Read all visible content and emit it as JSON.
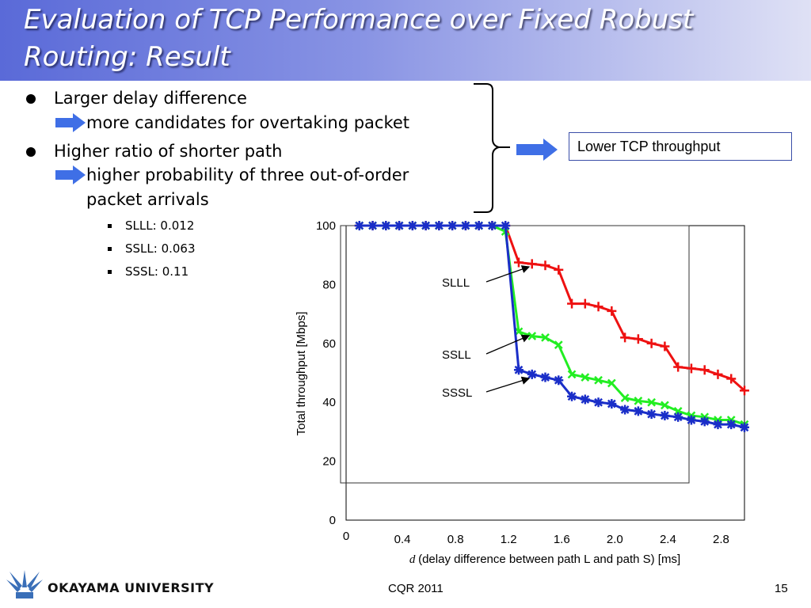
{
  "slide": {
    "title_line1": "Evaluation of TCP Performance over Fixed Robust",
    "title_line2": "Routing: Result"
  },
  "bullets": [
    {
      "text": "Larger delay difference",
      "consequence": "more candidates for overtaking packet"
    },
    {
      "text": "Higher ratio of shorter path",
      "consequence_line1": "higher probability of three out-of-order",
      "consequence_line2": "packet arrivals"
    }
  ],
  "sub_bullets": [
    "SLLL: 0.012",
    "SSLL: 0.063",
    "SSSL: 0.11"
  ],
  "conclusion": "Lower TCP throughput",
  "colors": {
    "title_gradient_start": "#5a6ad8",
    "arrow": "#3f6fe6",
    "slll": "#ee1111",
    "ssll": "#22ee22",
    "sssl": "#1a2ec8"
  },
  "icons": [
    "right-arrow-icon",
    "curly-brace-icon",
    "university-logo-icon"
  ],
  "chart_data": {
    "type": "line",
    "xlabel_italic": "d",
    "xlabel": "(delay difference between path L and path S) [ms]",
    "ylabel": "Total throughput [Mbps]",
    "ylim": [
      0,
      100
    ],
    "xlim": [
      0,
      3.0
    ],
    "xticks": [
      "0",
      "0.4",
      "0.8",
      "1.2",
      "1.6",
      "2.0",
      "2.4",
      "2.8"
    ],
    "yticks": [
      "0",
      "20",
      "40",
      "60",
      "80",
      "100"
    ],
    "series": [
      {
        "name": "SLLL",
        "marker": "+",
        "x": [
          0.1,
          0.2,
          0.3,
          0.4,
          0.5,
          0.6,
          0.7,
          0.8,
          0.9,
          1.0,
          1.1,
          1.2,
          1.3,
          1.4,
          1.5,
          1.6,
          1.7,
          1.8,
          1.9,
          2.0,
          2.1,
          2.2,
          2.3,
          2.4,
          2.5,
          2.6,
          2.7,
          2.8,
          2.9,
          3.0
        ],
        "y": [
          100,
          100,
          100,
          100,
          100,
          100,
          100,
          100,
          100,
          100,
          100,
          100,
          87.5,
          87,
          86.5,
          85,
          73.5,
          73.5,
          72.5,
          71,
          62,
          61.5,
          60,
          59,
          52,
          51.5,
          51,
          49.5,
          48,
          44
        ]
      },
      {
        "name": "SSLL",
        "marker": "x",
        "x": [
          0.1,
          0.2,
          0.3,
          0.4,
          0.5,
          0.6,
          0.7,
          0.8,
          0.9,
          1.0,
          1.1,
          1.2,
          1.3,
          1.4,
          1.5,
          1.6,
          1.7,
          1.8,
          1.9,
          2.0,
          2.1,
          2.2,
          2.3,
          2.4,
          2.5,
          2.6,
          2.7,
          2.8,
          2.9,
          3.0
        ],
        "y": [
          100,
          100,
          100,
          100,
          100,
          100,
          100,
          100,
          100,
          100,
          100,
          98,
          64,
          62.5,
          62,
          59.5,
          49.5,
          48.5,
          47.5,
          46.5,
          41.5,
          40.5,
          40,
          39,
          37,
          35.5,
          35,
          34,
          34,
          32.5
        ]
      },
      {
        "name": "SSSL",
        "marker": "*",
        "x": [
          0.1,
          0.2,
          0.3,
          0.4,
          0.5,
          0.6,
          0.7,
          0.8,
          0.9,
          1.0,
          1.1,
          1.2,
          1.3,
          1.4,
          1.5,
          1.6,
          1.7,
          1.8,
          1.9,
          2.0,
          2.1,
          2.2,
          2.3,
          2.4,
          2.5,
          2.6,
          2.7,
          2.8,
          2.9,
          3.0
        ],
        "y": [
          100,
          100,
          100,
          100,
          100,
          100,
          100,
          100,
          100,
          100,
          100,
          100,
          51,
          49.5,
          48.5,
          47.5,
          42,
          41,
          40,
          39.5,
          37.5,
          37,
          36,
          35.5,
          35,
          34,
          33.5,
          32.5,
          32.5,
          31.5
        ]
      }
    ]
  },
  "footer": {
    "university": "OKAYAMA  UNIVERSITY",
    "center": "CQR 2011",
    "page": "15"
  }
}
